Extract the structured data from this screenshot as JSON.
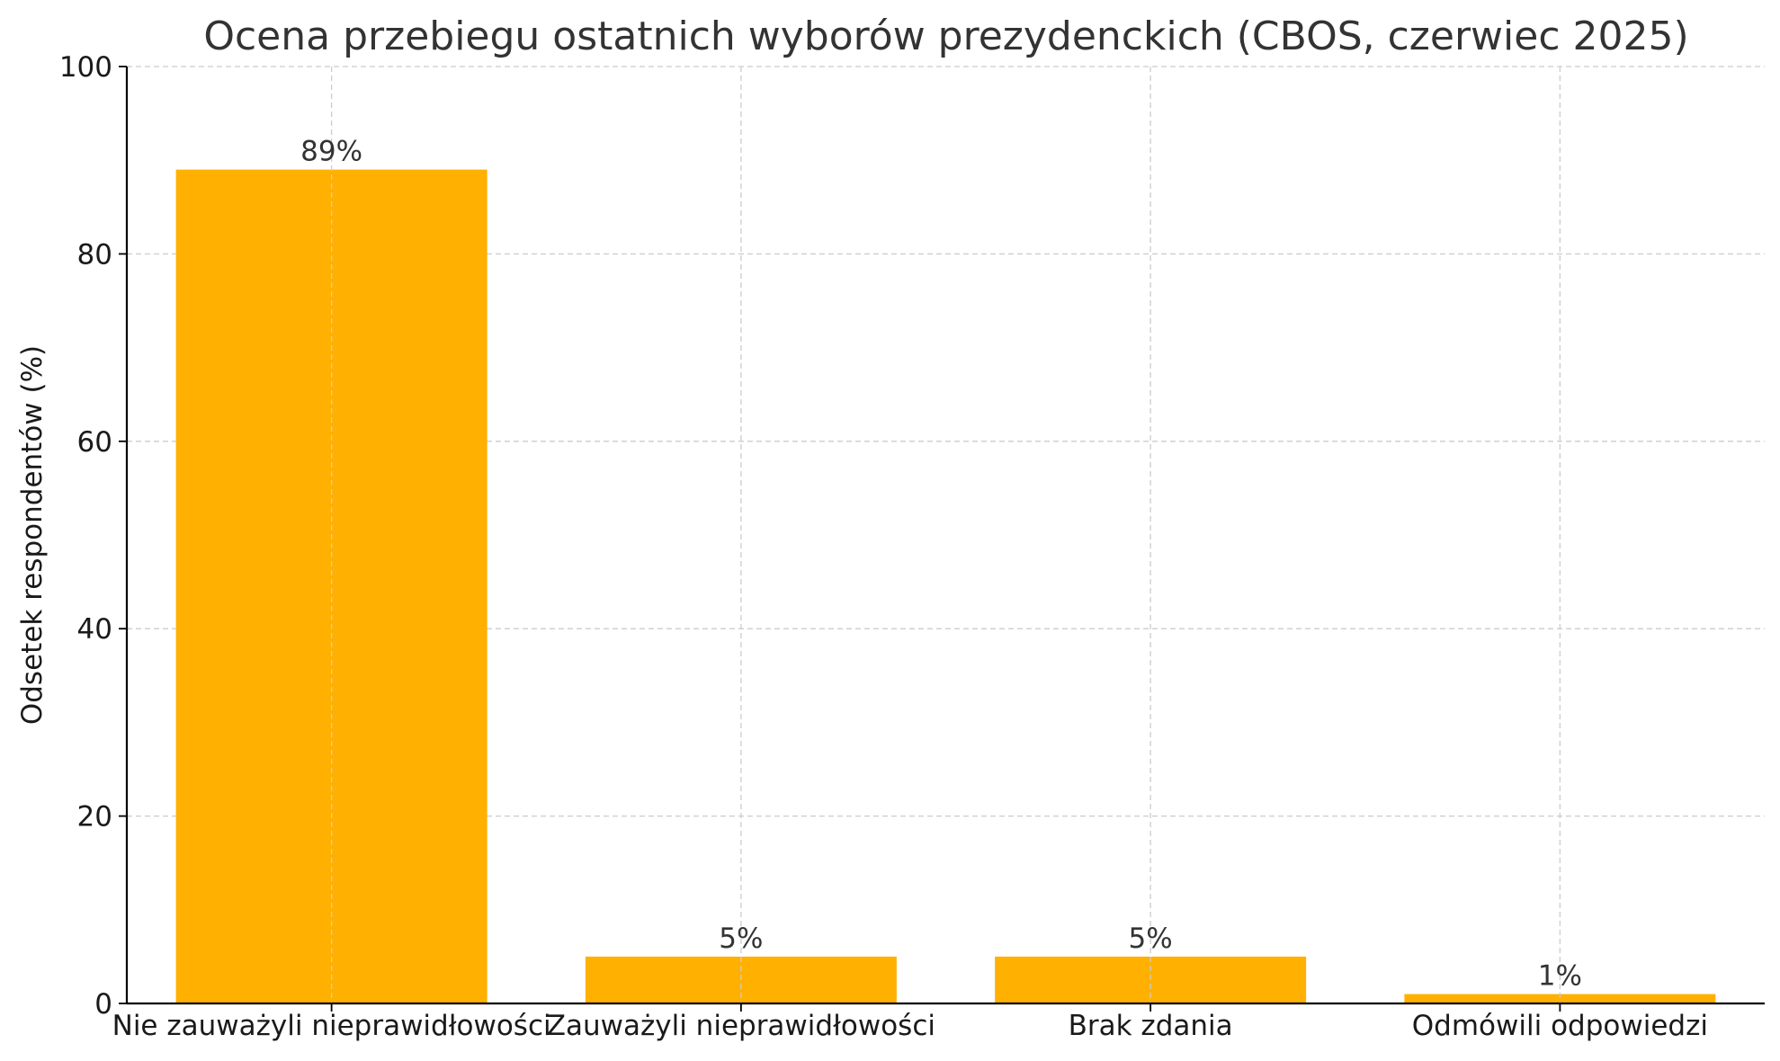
{
  "chart_data": {
    "type": "bar",
    "title": "Ocena przebiegu ostatnich wyborów prezydenckich (CBOS, czerwiec 2025)",
    "xlabel": "",
    "ylabel": "Odsetek respondentów (%)",
    "categories": [
      "Nie zauważyli nieprawidłowości",
      "Zauważyli nieprawidłowości",
      "Brak zdania",
      "Odmówili odpowiedzi"
    ],
    "values": [
      89,
      5,
      5,
      1
    ],
    "value_labels": [
      "89%",
      "5%",
      "5%",
      "1%"
    ],
    "ylim": [
      0,
      100
    ],
    "yticks": [
      0,
      20,
      40,
      60,
      80,
      100
    ],
    "grid": true,
    "bar_color": "#FFB000",
    "legend": "none"
  }
}
